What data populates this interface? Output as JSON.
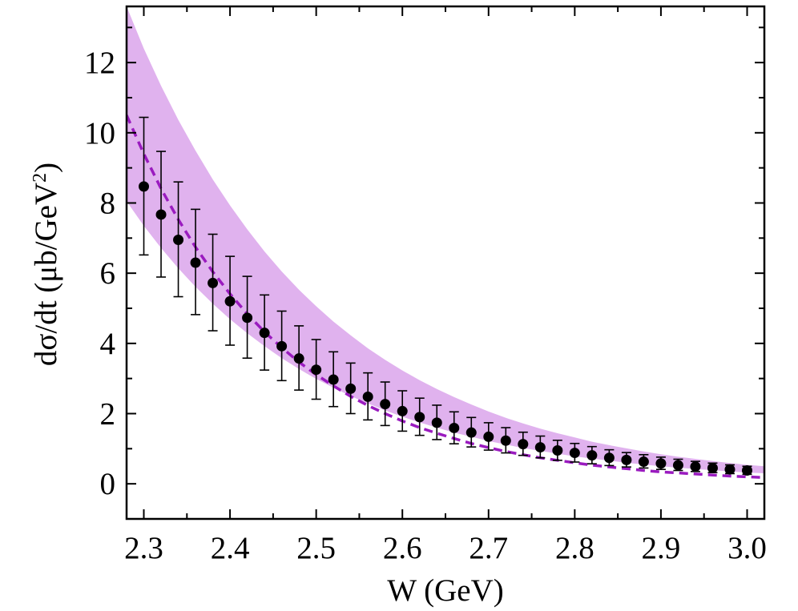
{
  "chart_data": {
    "type": "scatter",
    "xlabel": "W (GeV)",
    "ylabel": "dσ/dt (μb/GeV",
    "ylabel_sup": "2",
    "ylabel_close": ")",
    "xlim": [
      2.28,
      3.02
    ],
    "ylim": [
      -1,
      13.6
    ],
    "xticks": [
      "2.3",
      "2.4",
      "2.5",
      "2.6",
      "2.7",
      "2.8",
      "2.9",
      "3.0"
    ],
    "yticks": [
      "0",
      "2",
      "4",
      "6",
      "8",
      "10",
      "12"
    ],
    "grid": false,
    "colors": {
      "band": "#e0b2ee",
      "dashed_line": "#9a1bbf",
      "points": "#000000"
    },
    "band": {
      "x": [
        2.28,
        2.3,
        2.32,
        2.34,
        2.36,
        2.38,
        2.4,
        2.42,
        2.44,
        2.46,
        2.48,
        2.5,
        2.52,
        2.54,
        2.56,
        2.58,
        2.6,
        2.62,
        2.64,
        2.66,
        2.68,
        2.7,
        2.72,
        2.74,
        2.76,
        2.78,
        2.8,
        2.82,
        2.84,
        2.86,
        2.88,
        2.9,
        2.92,
        2.94,
        2.96,
        2.98,
        3.0,
        3.02
      ],
      "lower": [
        8.05,
        7.35,
        6.72,
        6.14,
        5.61,
        5.13,
        4.69,
        4.29,
        3.92,
        3.58,
        3.27,
        2.99,
        2.74,
        2.5,
        2.29,
        2.09,
        1.91,
        1.75,
        1.6,
        1.46,
        1.34,
        1.22,
        1.12,
        1.02,
        0.94,
        0.86,
        0.78,
        0.72,
        0.66,
        0.6,
        0.55,
        0.5,
        0.46,
        0.42,
        0.39,
        0.35,
        0.32,
        0.3
      ],
      "upper": [
        13.6,
        12.4,
        11.34,
        10.37,
        9.49,
        8.67,
        7.93,
        7.25,
        6.62,
        6.05,
        5.53,
        5.06,
        4.62,
        4.23,
        3.86,
        3.53,
        3.23,
        2.95,
        2.7,
        2.47,
        2.26,
        2.06,
        1.88,
        1.72,
        1.57,
        1.44,
        1.32,
        1.2,
        1.1,
        1.01,
        0.92,
        0.84,
        0.77,
        0.71,
        0.65,
        0.59,
        0.54,
        0.5
      ]
    },
    "dashed_line": {
      "x": [
        2.28,
        2.3,
        2.32,
        2.34,
        2.36,
        2.38,
        2.4,
        2.42,
        2.44,
        2.46,
        2.48,
        2.5,
        2.52,
        2.54,
        2.56,
        2.58,
        2.6,
        2.62,
        2.64,
        2.66,
        2.68,
        2.7,
        2.72,
        2.74,
        2.76,
        2.78,
        2.8,
        2.82,
        2.84,
        2.86,
        2.88,
        2.9,
        2.92,
        2.94,
        2.96,
        2.98,
        3.0,
        3.02
      ],
      "y": [
        10.5,
        9.4,
        8.41,
        7.53,
        6.74,
        6.04,
        5.41,
        4.84,
        4.33,
        3.88,
        3.47,
        3.11,
        2.79,
        2.49,
        2.23,
        2.0,
        1.79,
        1.6,
        1.44,
        1.29,
        1.15,
        1.03,
        0.92,
        0.83,
        0.74,
        0.67,
        0.6,
        0.53,
        0.48,
        0.43,
        0.38,
        0.34,
        0.31,
        0.28,
        0.25,
        0.22,
        0.2,
        0.18
      ]
    },
    "series": [
      {
        "x": [
          2.3,
          2.32,
          2.34,
          2.36,
          2.38,
          2.4,
          2.42,
          2.44,
          2.46,
          2.48,
          2.5,
          2.52,
          2.54,
          2.56,
          2.58,
          2.6,
          2.62,
          2.64,
          2.66,
          2.68,
          2.7,
          2.72,
          2.74,
          2.76,
          2.78,
          2.8,
          2.82,
          2.84,
          2.86,
          2.88,
          2.9,
          2.92,
          2.94,
          2.96,
          2.98,
          3.0
        ],
        "y": [
          8.47,
          7.67,
          6.95,
          6.3,
          5.72,
          5.2,
          4.73,
          4.3,
          3.92,
          3.57,
          3.25,
          2.97,
          2.71,
          2.48,
          2.27,
          2.07,
          1.9,
          1.74,
          1.59,
          1.46,
          1.34,
          1.23,
          1.13,
          1.04,
          0.95,
          0.88,
          0.81,
          0.74,
          0.68,
          0.63,
          0.58,
          0.53,
          0.49,
          0.45,
          0.41,
          0.38
        ],
        "err_low": [
          1.95,
          1.78,
          1.62,
          1.48,
          1.36,
          1.25,
          1.15,
          1.06,
          0.98,
          0.9,
          0.84,
          0.77,
          0.71,
          0.66,
          0.61,
          0.57,
          0.52,
          0.48,
          0.45,
          0.41,
          0.38,
          0.35,
          0.32,
          0.3,
          0.28,
          0.26,
          0.24,
          0.22,
          0.2,
          0.18,
          0.17,
          0.15,
          0.14,
          0.13,
          0.12,
          0.11
        ],
        "err_high": [
          1.97,
          1.8,
          1.65,
          1.52,
          1.39,
          1.28,
          1.18,
          1.08,
          1.0,
          0.93,
          0.86,
          0.79,
          0.73,
          0.68,
          0.63,
          0.58,
          0.54,
          0.5,
          0.46,
          0.43,
          0.4,
          0.37,
          0.34,
          0.32,
          0.29,
          0.27,
          0.25,
          0.23,
          0.21,
          0.2,
          0.18,
          0.17,
          0.15,
          0.14,
          0.13,
          0.12
        ]
      }
    ]
  }
}
